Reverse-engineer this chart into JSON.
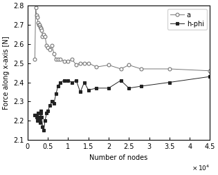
{
  "title": "",
  "xlabel": "Number of nodes",
  "ylabel": "Force along x-axis [N]",
  "xlim": [
    0,
    45000
  ],
  "ylim": [
    2.1,
    2.8
  ],
  "xtick_vals": [
    0,
    5000,
    10000,
    15000,
    20000,
    25000,
    30000,
    35000,
    40000,
    45000
  ],
  "xtick_labels": [
    "0",
    "0.5",
    "1",
    "1.5",
    "2",
    "2.5",
    "3",
    "3.5",
    "4",
    "4.5"
  ],
  "ytick_vals": [
    2.1,
    2.2,
    2.3,
    2.4,
    2.5,
    2.6,
    2.7,
    2.8
  ],
  "series_a_x": [
    1800,
    2000,
    2200,
    2400,
    2600,
    2800,
    3000,
    3100,
    3200,
    3300,
    3500,
    3700,
    4000,
    4300,
    4700,
    5000,
    5500,
    6000,
    6500,
    7000,
    7500,
    8000,
    9000,
    10000,
    11000,
    12000,
    13000,
    14000,
    15000,
    17000,
    20000,
    23000,
    25000,
    28000,
    35000,
    45000
  ],
  "series_a_y": [
    2.52,
    2.79,
    2.75,
    2.74,
    2.71,
    2.7,
    2.7,
    2.69,
    2.68,
    2.68,
    2.67,
    2.64,
    2.65,
    2.64,
    2.59,
    2.58,
    2.57,
    2.59,
    2.55,
    2.52,
    2.52,
    2.52,
    2.51,
    2.51,
    2.52,
    2.49,
    2.5,
    2.5,
    2.5,
    2.48,
    2.49,
    2.47,
    2.49,
    2.47,
    2.47,
    2.46
  ],
  "series_hphi_x": [
    1800,
    2000,
    2200,
    2400,
    2600,
    2800,
    3000,
    3100,
    3200,
    3300,
    3500,
    3700,
    4000,
    4300,
    4700,
    5000,
    5500,
    6000,
    6500,
    7000,
    7500,
    8000,
    9000,
    10000,
    11000,
    12000,
    13000,
    14000,
    15000,
    17000,
    20000,
    23000,
    25000,
    28000,
    35000,
    45000
  ],
  "series_hphi_y": [
    2.23,
    2.23,
    2.22,
    2.2,
    2.24,
    2.22,
    2.2,
    2.19,
    2.25,
    2.24,
    2.22,
    2.17,
    2.15,
    2.2,
    2.24,
    2.25,
    2.28,
    2.3,
    2.29,
    2.34,
    2.38,
    2.4,
    2.41,
    2.41,
    2.4,
    2.41,
    2.35,
    2.4,
    2.36,
    2.37,
    2.37,
    2.41,
    2.37,
    2.38,
    2.4,
    2.43
  ],
  "color_a": "#777777",
  "color_hphi": "#222222",
  "marker_a": "o",
  "marker_hphi": "s",
  "legend_a": "a",
  "legend_hphi": "h-phi",
  "figsize": [
    3.15,
    2.54
  ],
  "dpi": 100
}
